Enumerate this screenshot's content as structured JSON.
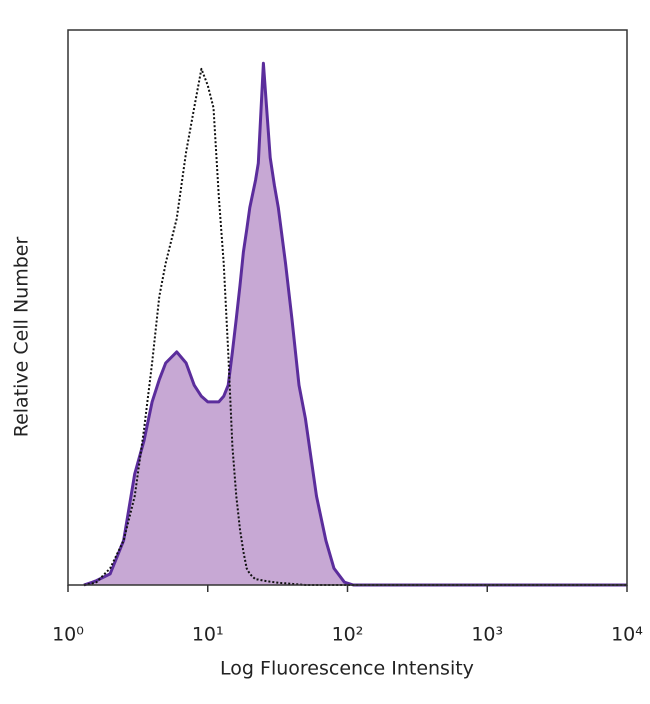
{
  "chart_data": {
    "type": "line",
    "xscale": "log",
    "xlabel": "Log Fluorescence Intensity",
    "ylabel": "Relative Cell Number",
    "x": [
      1.3,
      1.5,
      1.6,
      2,
      2.5,
      3,
      3.5,
      4,
      4.5,
      5,
      6,
      7,
      8,
      9,
      10,
      11,
      12,
      13,
      14,
      15,
      16,
      17,
      18,
      19,
      20,
      22,
      23,
      25,
      28,
      30,
      32,
      36,
      40,
      45,
      50,
      60,
      70,
      80,
      95,
      110,
      10000
    ],
    "series": [
      {
        "color": "#5b2d9c",
        "fill_color": "#c7a8d4",
        "linestyle": "solid",
        "values": [
          0,
          0.5,
          0.8,
          2,
          8,
          20,
          26,
          33,
          37,
          40,
          42,
          40,
          36,
          34,
          33,
          33,
          33,
          34,
          36,
          42,
          48,
          54,
          60,
          64,
          68,
          73,
          76,
          94,
          77,
          72,
          68,
          58,
          48,
          36,
          30,
          16,
          8,
          3,
          0.5,
          0,
          0
        ]
      },
      {
        "color": "#111111",
        "linestyle": "dotted",
        "values": [
          0,
          0.3,
          0.5,
          3,
          8,
          16,
          28,
          40,
          52,
          58,
          66,
          78,
          86,
          93,
          90,
          86,
          70,
          58,
          42,
          25,
          16,
          10,
          6,
          3,
          2,
          1,
          1,
          0.8,
          0.6,
          0.5,
          0.4,
          0.3,
          0.2,
          0.1,
          0,
          0,
          0,
          0,
          0,
          0,
          0
        ]
      }
    ],
    "xlim": [
      1,
      10000
    ],
    "xticks": [
      {
        "value": 1,
        "label": "10⁰"
      },
      {
        "value": 10,
        "label": "10¹"
      },
      {
        "value": 100,
        "label": "10²"
      },
      {
        "value": 1000,
        "label": "10³"
      },
      {
        "value": 10000,
        "label": "10⁴"
      }
    ],
    "ylim": [
      0,
      100
    ]
  }
}
